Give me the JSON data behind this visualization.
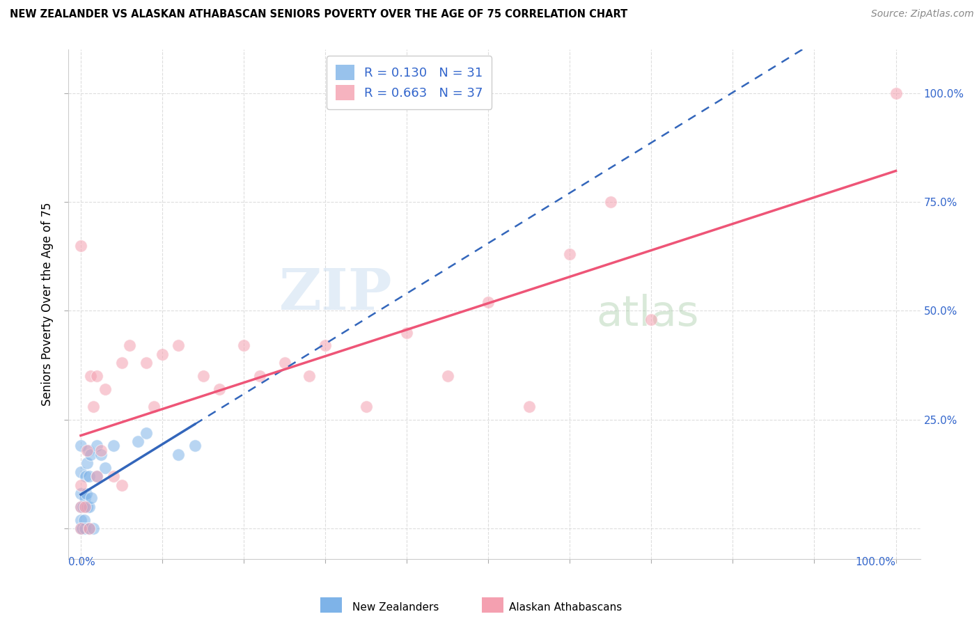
{
  "title": "NEW ZEALANDER VS ALASKAN ATHABASCAN SENIORS POVERTY OVER THE AGE OF 75 CORRELATION CHART",
  "source": "Source: ZipAtlas.com",
  "ylabel_label": "Seniors Poverty Over the Age of 75",
  "legend_label1": "New Zealanders",
  "legend_label2": "Alaskan Athabascans",
  "R1": 0.13,
  "N1": 31,
  "R2": 0.663,
  "N2": 37,
  "color_blue": "#7EB3E8",
  "color_pink": "#F4A0B0",
  "trendline_blue": "#3366BB",
  "trendline_pink": "#EE5577",
  "watermark_zip": "ZIP",
  "watermark_atlas": "atlas",
  "blue_points_x": [
    0.0,
    0.0,
    0.0,
    0.0,
    0.0,
    0.0,
    0.002,
    0.003,
    0.004,
    0.005,
    0.005,
    0.006,
    0.007,
    0.008,
    0.008,
    0.009,
    0.01,
    0.01,
    0.01,
    0.012,
    0.013,
    0.015,
    0.02,
    0.02,
    0.025,
    0.03,
    0.04,
    0.07,
    0.08,
    0.12,
    0.14
  ],
  "blue_points_y": [
    0.0,
    0.02,
    0.05,
    0.08,
    0.13,
    0.19,
    0.0,
    0.05,
    0.02,
    0.0,
    0.07,
    0.12,
    0.08,
    0.05,
    0.15,
    0.18,
    0.0,
    0.05,
    0.12,
    0.17,
    0.07,
    0.0,
    0.12,
    0.19,
    0.17,
    0.14,
    0.19,
    0.2,
    0.22,
    0.17,
    0.19
  ],
  "pink_points_x": [
    0.0,
    0.0,
    0.0,
    0.0,
    0.005,
    0.008,
    0.01,
    0.012,
    0.015,
    0.02,
    0.02,
    0.025,
    0.03,
    0.04,
    0.05,
    0.05,
    0.06,
    0.08,
    0.09,
    0.1,
    0.12,
    0.15,
    0.17,
    0.2,
    0.22,
    0.25,
    0.28,
    0.3,
    0.35,
    0.4,
    0.45,
    0.5,
    0.55,
    0.6,
    0.65,
    0.7,
    1.0
  ],
  "pink_points_y": [
    0.0,
    0.05,
    0.1,
    0.65,
    0.05,
    0.18,
    0.0,
    0.35,
    0.28,
    0.12,
    0.35,
    0.18,
    0.32,
    0.12,
    0.38,
    0.1,
    0.42,
    0.38,
    0.28,
    0.4,
    0.42,
    0.35,
    0.32,
    0.42,
    0.35,
    0.38,
    0.35,
    0.42,
    0.28,
    0.45,
    0.35,
    0.52,
    0.28,
    0.63,
    0.75,
    0.48,
    1.0
  ],
  "xlim": [
    -0.015,
    1.03
  ],
  "ylim": [
    -0.07,
    1.1
  ],
  "grid_yticks": [
    0.0,
    0.25,
    0.5,
    0.75,
    1.0
  ],
  "right_yticklabels": [
    "",
    "25.0%",
    "50.0%",
    "75.0%",
    "100.0%"
  ],
  "background_color": "#FFFFFF",
  "grid_color": "#DDDDDD"
}
